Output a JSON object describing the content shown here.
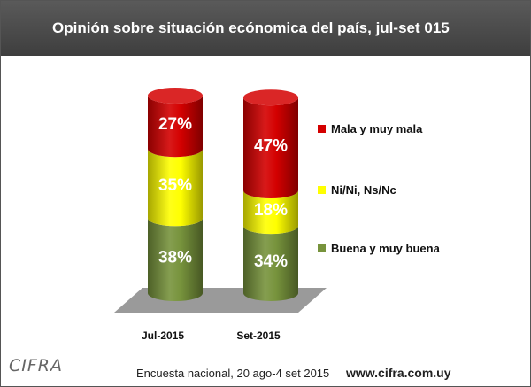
{
  "header": {
    "title": "Opinión sobre situación ecónomica del país,  jul-set 015"
  },
  "chart_data": {
    "type": "bar",
    "stacked": true,
    "style": "3d-cylinder",
    "categories": [
      "Jul-2015",
      "Set-2015"
    ],
    "series": [
      {
        "name": "Buena y muy buena",
        "color": "#77933c",
        "values": [
          38,
          34
        ],
        "labels": [
          "38%",
          "34%"
        ]
      },
      {
        "name": "Ni/Ni, Ns/Nc",
        "color": "#ffff00",
        "values": [
          35,
          18
        ],
        "labels": [
          "35%",
          "18%"
        ]
      },
      {
        "name": "Mala y muy mala",
        "color": "#d40000",
        "values": [
          27,
          47
        ],
        "labels": [
          "27%",
          "47%"
        ]
      }
    ],
    "ylim": [
      0,
      100
    ],
    "legend": "right",
    "grid": false
  },
  "footer": {
    "logo": "CIFRA",
    "source": "Encuesta nacional,  20 ago-4 set 2015",
    "url": "www.cifra.com.uy"
  }
}
